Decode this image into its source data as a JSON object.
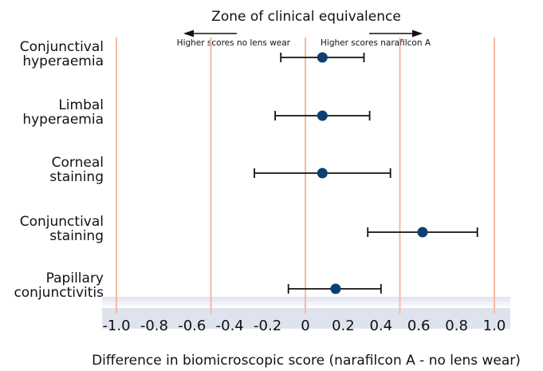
{
  "chart_data": {
    "type": "scatter",
    "title": "Zone of clinical equivalence",
    "xlabel": "Difference in biomicroscopic score (narafilcon A - no lens wear)",
    "ylabel": "",
    "xlim": [
      -1.0,
      1.0
    ],
    "x_ticks": [
      -1.0,
      -0.8,
      -0.6,
      -0.4,
      -0.2,
      0,
      0.2,
      0.4,
      0.6,
      0.8,
      1.0
    ],
    "x_tick_labels": [
      "-1.0",
      "-0.8",
      "-0.6",
      "-0.4",
      "-0.2",
      "0",
      "0.2",
      "0.4",
      "0.6",
      "0.8",
      "1.0"
    ],
    "reference_lines": [
      -1.0,
      -0.5,
      0,
      0.5,
      1.0
    ],
    "grid": false,
    "annotations": {
      "left_arrow": "Higher scores no lens wear",
      "right_arrow": "Higher scores narafilcon A"
    },
    "categories": [
      [
        "Conjunctival",
        "hyperaemia"
      ],
      [
        "Limbal",
        "hyperaemia"
      ],
      [
        "Corneal",
        "staining"
      ],
      [
        "Conjunctival",
        "staining"
      ],
      [
        "Papillary",
        "conjunctivitis"
      ]
    ],
    "estimates": [
      0.09,
      0.09,
      0.09,
      0.62,
      0.16
    ],
    "ci_low": [
      -0.13,
      -0.16,
      -0.27,
      0.33,
      -0.09
    ],
    "ci_high": [
      0.31,
      0.34,
      0.45,
      0.91,
      0.4
    ]
  },
  "colors": {
    "point": "#0d3f72",
    "reference_line": "#f3b9a5",
    "error_bar": "#111111",
    "axis_band": "#dfe3ee",
    "arrow": "#111111"
  }
}
